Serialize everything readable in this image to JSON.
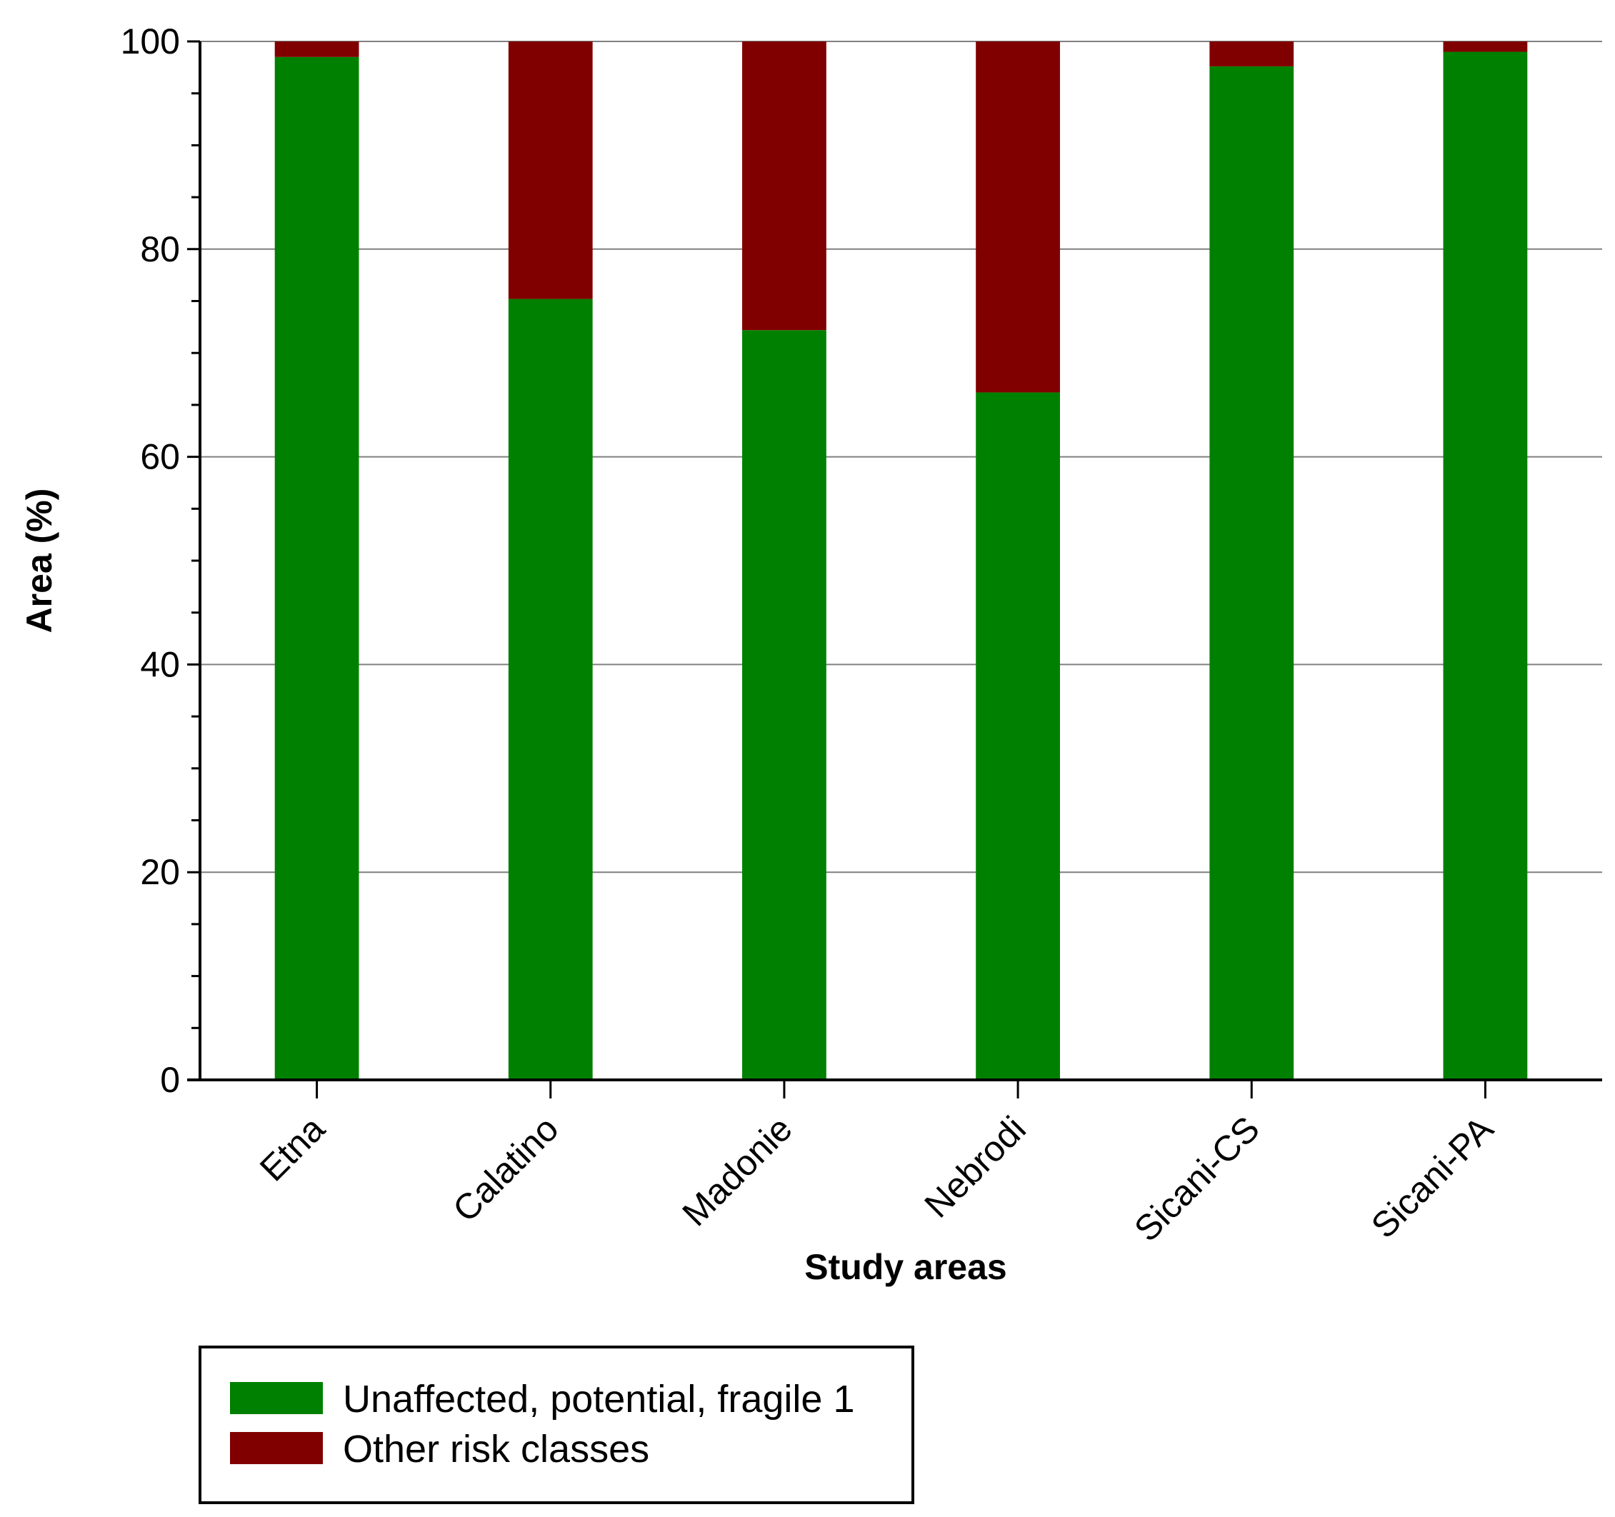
{
  "chart_data": {
    "type": "bar",
    "stacked": true,
    "categories": [
      "Etna",
      "Calatino",
      "Madonie",
      "Nebrodi",
      "Sicani-CS",
      "Sicani-PA"
    ],
    "series": [
      {
        "name": "Unaffected, potential, fragile 1",
        "color": "#008000",
        "values": [
          98.5,
          75.2,
          72.2,
          66.2,
          97.6,
          99.0
        ]
      },
      {
        "name": "Other risk classes",
        "color": "#800000",
        "values": [
          1.5,
          24.8,
          27.8,
          33.8,
          2.4,
          1.0
        ]
      }
    ],
    "title": "",
    "xlabel": "Study areas",
    "ylabel": "Area (%)",
    "ylim": [
      0,
      100
    ],
    "yticks": [
      "0",
      "20",
      "40",
      "60",
      "80",
      "100"
    ],
    "ytick_values": [
      0,
      20,
      40,
      60,
      80,
      100
    ],
    "minor_tick_step": 5,
    "grid": true,
    "legend_position": "bottom-left"
  }
}
